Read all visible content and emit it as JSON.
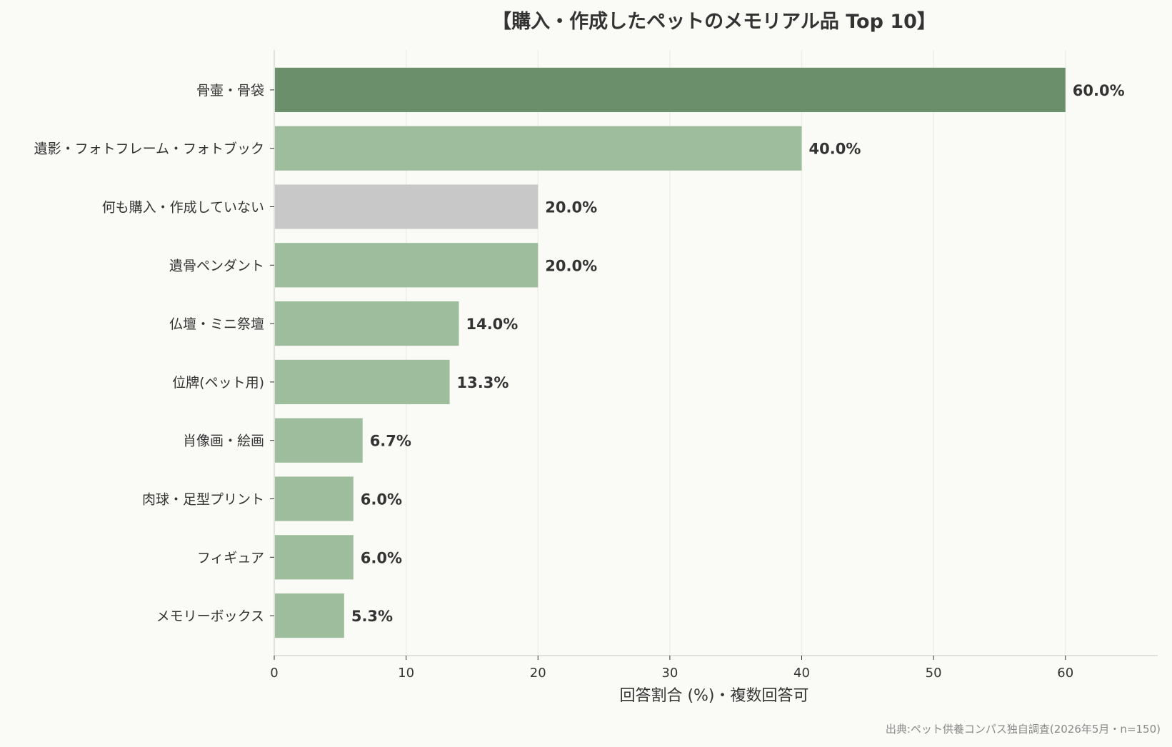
{
  "chart_data": {
    "type": "bar",
    "orientation": "horizontal",
    "title": "【購入・作成したペットのメモリアル品 Top 10】",
    "xlabel": "回答割合 (%)・複数回答可",
    "ylabel": "",
    "xlim": [
      0,
      67
    ],
    "xticks": [
      0,
      10,
      20,
      30,
      40,
      50,
      60
    ],
    "grid": true,
    "categories": [
      "骨壷・骨袋",
      "遺影・フォトフレーム・フォトブック",
      "何も購入・作成していない",
      "遺骨ペンダント",
      "仏壇・ミニ祭壇",
      "位牌(ペット用)",
      "肖像画・絵画",
      "肉球・足型プリント",
      "フィギュア",
      "メモリーボックス"
    ],
    "values": [
      60.0,
      40.0,
      20.0,
      20.0,
      14.0,
      13.3,
      6.7,
      6.0,
      6.0,
      5.3
    ],
    "value_labels": [
      "60.0%",
      "40.0%",
      "20.0%",
      "20.0%",
      "14.0%",
      "13.3%",
      "6.7%",
      "6.0%",
      "6.0%",
      "5.3%"
    ],
    "colors": {
      "top": "#6b8f6a",
      "default": "#9ebd9c",
      "none": "#c8c8c8"
    },
    "bar_color_keys": [
      "top",
      "default",
      "none",
      "default",
      "default",
      "default",
      "default",
      "default",
      "default",
      "default"
    ],
    "source": "出典:ペット供養コンパス独自調査(2026年5月・n=150)"
  }
}
